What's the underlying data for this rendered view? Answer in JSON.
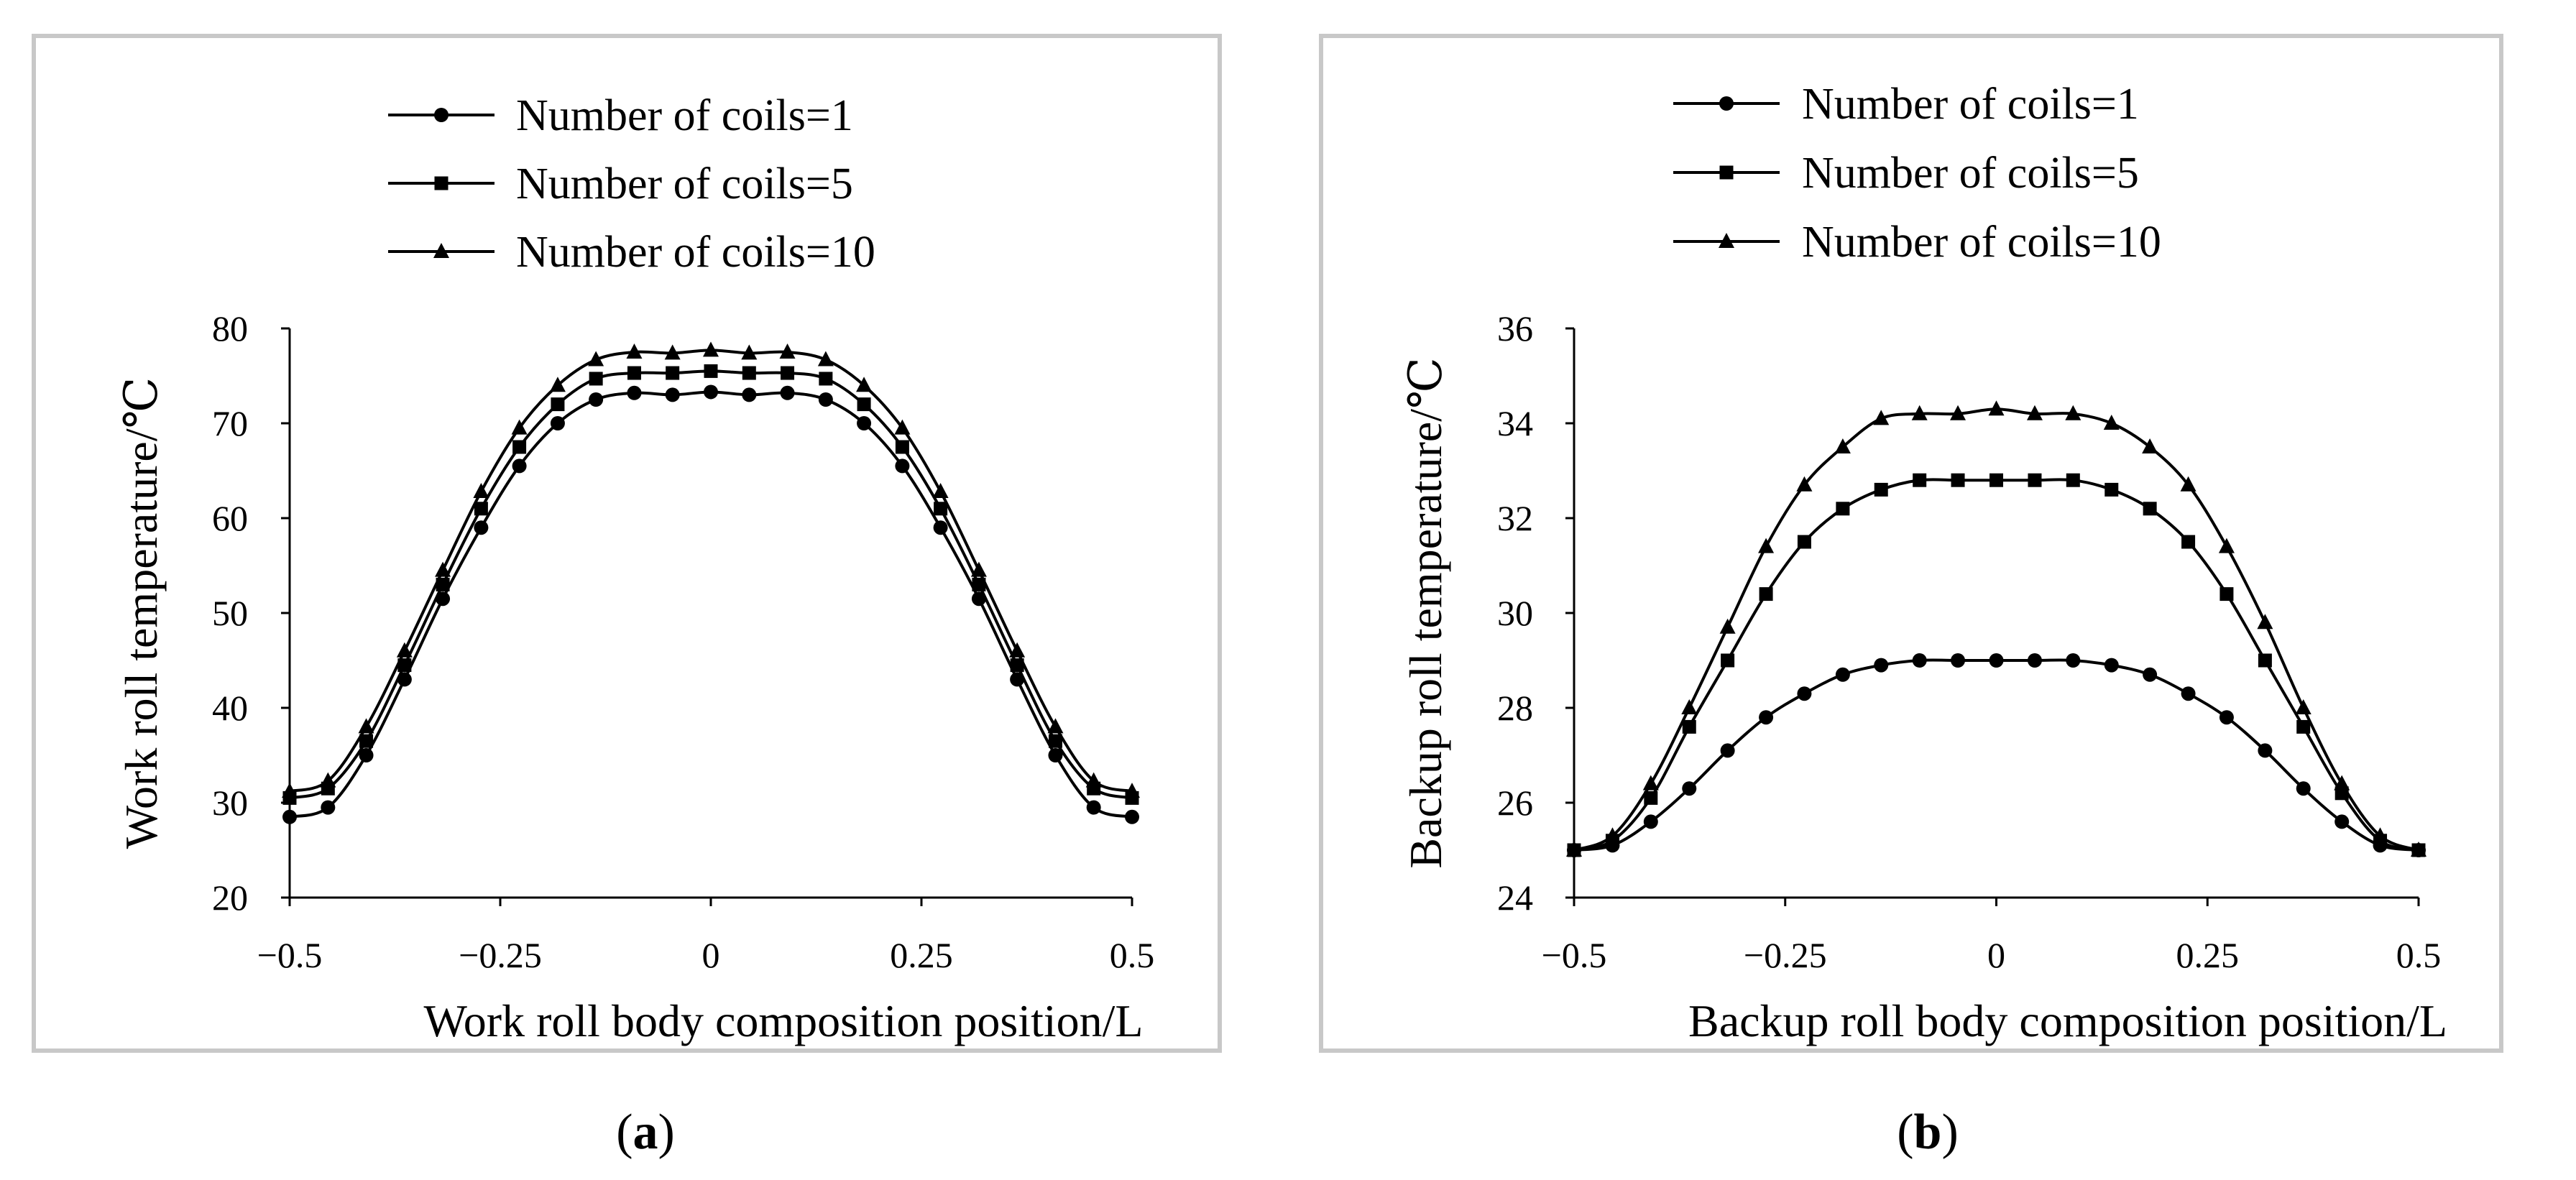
{
  "chart_data": [
    {
      "type": "line",
      "panel_label": "(a)",
      "title": "",
      "xlabel": "Work roll body composition position/L",
      "ylabel": "Work roll temperature/℃",
      "xlim": [
        -0.5,
        0.5
      ],
      "ylim": [
        20,
        80
      ],
      "xticks": [
        -0.5,
        -0.25,
        0,
        0.25,
        0.5
      ],
      "xtick_labels": [
        "-0.5",
        "-0.25",
        "0",
        "0.25",
        "0.5"
      ],
      "yticks": [
        20,
        30,
        40,
        50,
        60,
        70,
        80
      ],
      "ytick_labels": [
        "20",
        "30",
        "40",
        "50",
        "60",
        "70",
        "80"
      ],
      "grid": false,
      "legend_position": "top",
      "x": [
        -0.5,
        -0.4545,
        -0.4091,
        -0.3636,
        -0.3182,
        -0.2727,
        -0.2273,
        -0.1818,
        -0.1364,
        -0.0909,
        -0.0455,
        0,
        0.0455,
        0.0909,
        0.1364,
        0.1818,
        0.2273,
        0.2727,
        0.3182,
        0.3636,
        0.4091,
        0.4545,
        0.5
      ],
      "series": [
        {
          "name": "Number of coils=1",
          "marker": "circle",
          "values": [
            28.5,
            29.5,
            35.0,
            43.0,
            51.5,
            59.0,
            65.5,
            70.0,
            72.5,
            73.2,
            73.0,
            73.3,
            73.0,
            73.2,
            72.5,
            70.0,
            65.5,
            59.0,
            51.5,
            43.0,
            35.0,
            29.5,
            28.5
          ]
        },
        {
          "name": "Number of coils=5",
          "marker": "square",
          "values": [
            30.5,
            31.5,
            36.5,
            44.5,
            53.0,
            61.0,
            67.5,
            72.0,
            74.7,
            75.3,
            75.3,
            75.5,
            75.3,
            75.3,
            74.7,
            72.0,
            67.5,
            61.0,
            53.0,
            44.5,
            36.5,
            31.5,
            30.5
          ]
        },
        {
          "name": "Number of coils=10",
          "marker": "triangle",
          "values": [
            31.2,
            32.3,
            38.0,
            46.0,
            54.5,
            62.8,
            69.5,
            74.0,
            76.7,
            77.5,
            77.4,
            77.7,
            77.4,
            77.5,
            76.7,
            74.0,
            69.5,
            62.8,
            54.5,
            46.0,
            38.0,
            32.3,
            31.2
          ]
        }
      ]
    },
    {
      "type": "line",
      "panel_label": "(b)",
      "title": "",
      "xlabel": "Backup roll body composition position/L",
      "ylabel": "Backup roll temperature/℃",
      "xlim": [
        -0.5,
        0.5
      ],
      "ylim": [
        24,
        36
      ],
      "xticks": [
        -0.5,
        -0.25,
        0,
        0.25,
        0.5
      ],
      "xtick_labels": [
        "-0.5",
        "-0.25",
        "0",
        "0.25",
        "0.5"
      ],
      "yticks": [
        24,
        26,
        28,
        30,
        32,
        34,
        36
      ],
      "ytick_labels": [
        "24",
        "26",
        "28",
        "30",
        "32",
        "34",
        "36"
      ],
      "grid": false,
      "legend_position": "top",
      "x": [
        -0.5,
        -0.4545,
        -0.4091,
        -0.3636,
        -0.3182,
        -0.2727,
        -0.2273,
        -0.1818,
        -0.1364,
        -0.0909,
        -0.0455,
        0,
        0.0455,
        0.0909,
        0.1364,
        0.1818,
        0.2273,
        0.2727,
        0.3182,
        0.3636,
        0.4091,
        0.4545,
        0.5
      ],
      "series": [
        {
          "name": "Number of coils=1",
          "marker": "circle",
          "values": [
            25.0,
            25.1,
            25.6,
            26.3,
            27.1,
            27.8,
            28.3,
            28.7,
            28.9,
            29.0,
            29.0,
            29.0,
            29.0,
            29.0,
            28.9,
            28.7,
            28.3,
            27.8,
            27.1,
            26.3,
            25.6,
            25.1,
            25.0
          ]
        },
        {
          "name": "Number of coils=5",
          "marker": "square",
          "values": [
            25.0,
            25.2,
            26.1,
            27.6,
            29.0,
            30.4,
            31.5,
            32.2,
            32.6,
            32.8,
            32.8,
            32.8,
            32.8,
            32.8,
            32.6,
            32.2,
            31.5,
            30.4,
            29.0,
            27.6,
            26.2,
            25.2,
            25.0
          ]
        },
        {
          "name": "Number of coils=10",
          "marker": "triangle",
          "values": [
            25.0,
            25.3,
            26.4,
            28.0,
            29.7,
            31.4,
            32.7,
            33.5,
            34.1,
            34.2,
            34.2,
            34.3,
            34.2,
            34.2,
            34.0,
            33.5,
            32.7,
            31.4,
            29.8,
            28.0,
            26.4,
            25.3,
            25.0
          ]
        }
      ]
    }
  ]
}
